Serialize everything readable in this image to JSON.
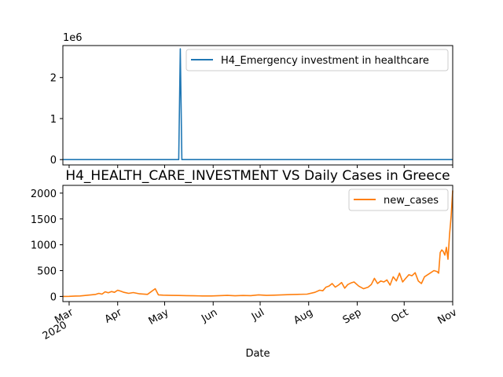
{
  "figure": {
    "xlabel": "Date"
  },
  "chart_data": [
    {
      "type": "line",
      "title": "",
      "ylabel": "",
      "y_offset_label": "1e6",
      "x_range": [
        "2020-02-26",
        "2020-11-01"
      ],
      "ylim": [
        -130000,
        2780000
      ],
      "yticks": [
        0,
        1000000,
        2000000
      ],
      "ytick_labels": [
        "0",
        "1",
        "2"
      ],
      "legend": {
        "position": "top-right"
      },
      "series": [
        {
          "name": "H4_Emergency investment in healthcare",
          "color": "#1f77b4",
          "x": [
            "2020-02-26",
            "2020-05-10",
            "2020-05-11",
            "2020-05-12",
            "2020-11-01"
          ],
          "y": [
            0,
            0,
            2700000,
            0,
            0
          ]
        }
      ]
    },
    {
      "type": "line",
      "title": "H4_HEALTH_CARE_INVESTMENT VS Daily Cases in Greece",
      "xlabel": "Date",
      "ylabel": "",
      "x_range": [
        "2020-02-26",
        "2020-11-01"
      ],
      "ylim": [
        -100,
        2150
      ],
      "yticks": [
        0,
        500,
        1000,
        1500,
        2000
      ],
      "ytick_labels": [
        "0",
        "500",
        "1000",
        "1500",
        "2000"
      ],
      "xticks": [
        {
          "date": "2020-03-01",
          "label": "Mar",
          "sublabel": "2020"
        },
        {
          "date": "2020-04-01",
          "label": "Apr"
        },
        {
          "date": "2020-05-01",
          "label": "May"
        },
        {
          "date": "2020-06-01",
          "label": "Jun"
        },
        {
          "date": "2020-07-01",
          "label": "Jul"
        },
        {
          "date": "2020-08-01",
          "label": "Aug"
        },
        {
          "date": "2020-09-01",
          "label": "Sep"
        },
        {
          "date": "2020-10-01",
          "label": "Oct"
        },
        {
          "date": "2020-11-01",
          "label": "Nov"
        }
      ],
      "legend": {
        "position": "top-right"
      },
      "series": [
        {
          "name": "new_cases",
          "color": "#ff7f0e",
          "x": [
            "2020-02-26",
            "2020-03-01",
            "2020-03-05",
            "2020-03-08",
            "2020-03-10",
            "2020-03-13",
            "2020-03-15",
            "2020-03-18",
            "2020-03-20",
            "2020-03-22",
            "2020-03-24",
            "2020-03-26",
            "2020-03-28",
            "2020-03-30",
            "2020-04-01",
            "2020-04-03",
            "2020-04-05",
            "2020-04-08",
            "2020-04-11",
            "2020-04-15",
            "2020-04-20",
            "2020-04-25",
            "2020-04-27",
            "2020-04-30",
            "2020-05-05",
            "2020-05-10",
            "2020-05-15",
            "2020-05-20",
            "2020-05-25",
            "2020-05-31",
            "2020-06-05",
            "2020-06-10",
            "2020-06-15",
            "2020-06-20",
            "2020-06-25",
            "2020-06-30",
            "2020-07-05",
            "2020-07-10",
            "2020-07-15",
            "2020-07-20",
            "2020-07-25",
            "2020-07-31",
            "2020-08-05",
            "2020-08-08",
            "2020-08-10",
            "2020-08-12",
            "2020-08-14",
            "2020-08-16",
            "2020-08-18",
            "2020-08-20",
            "2020-08-22",
            "2020-08-24",
            "2020-08-26",
            "2020-08-28",
            "2020-08-30",
            "2020-09-02",
            "2020-09-05",
            "2020-09-08",
            "2020-09-10",
            "2020-09-12",
            "2020-09-14",
            "2020-09-16",
            "2020-09-18",
            "2020-09-20",
            "2020-09-22",
            "2020-09-24",
            "2020-09-26",
            "2020-09-28",
            "2020-09-30",
            "2020-10-02",
            "2020-10-04",
            "2020-10-06",
            "2020-10-08",
            "2020-10-10",
            "2020-10-12",
            "2020-10-14",
            "2020-10-16",
            "2020-10-18",
            "2020-10-20",
            "2020-10-22",
            "2020-10-23",
            "2020-10-24",
            "2020-10-25",
            "2020-10-26",
            "2020-10-27",
            "2020-10-28",
            "2020-10-29",
            "2020-10-30",
            "2020-10-31",
            "2020-11-01"
          ],
          "y": [
            0,
            2,
            8,
            10,
            15,
            25,
            30,
            40,
            60,
            45,
            90,
            70,
            95,
            80,
            120,
            100,
            80,
            60,
            75,
            50,
            40,
            150,
            30,
            25,
            20,
            18,
            15,
            12,
            10,
            10,
            15,
            20,
            12,
            18,
            15,
            30,
            20,
            25,
            30,
            35,
            40,
            45,
            80,
            120,
            110,
            180,
            200,
            250,
            180,
            220,
            270,
            160,
            230,
            260,
            280,
            200,
            150,
            180,
            230,
            350,
            250,
            300,
            280,
            320,
            220,
            380,
            300,
            450,
            280,
            350,
            420,
            400,
            460,
            300,
            250,
            380,
            420,
            460,
            500,
            480,
            450,
            850,
            900,
            870,
            800,
            950,
            720,
            1200,
            1550,
            2050
          ]
        }
      ]
    }
  ]
}
